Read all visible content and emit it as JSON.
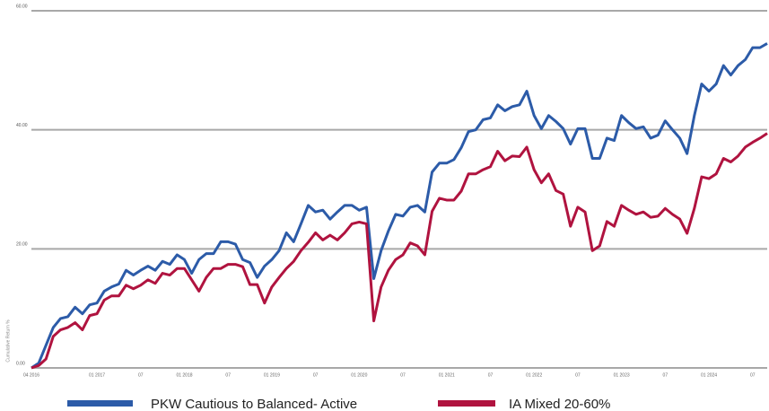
{
  "chart_data": {
    "type": "line",
    "y_label": "Cumulative Return %",
    "categories": [
      "04 2016",
      null,
      null,
      null,
      null,
      null,
      null,
      null,
      null,
      "01 2017",
      null,
      null,
      null,
      null,
      null,
      "07",
      null,
      null,
      null,
      null,
      null,
      "01 2018",
      null,
      null,
      null,
      null,
      null,
      "07",
      null,
      null,
      null,
      null,
      null,
      "01 2019",
      null,
      null,
      null,
      null,
      null,
      "07",
      null,
      null,
      null,
      null,
      null,
      "01 2020",
      null,
      null,
      null,
      null,
      null,
      "07",
      null,
      null,
      null,
      null,
      null,
      "01 2021",
      null,
      null,
      null,
      null,
      null,
      "07",
      null,
      null,
      null,
      null,
      null,
      "01 2022",
      null,
      null,
      null,
      null,
      null,
      "07",
      null,
      null,
      null,
      null,
      null,
      "01 2023",
      null,
      null,
      null,
      null,
      null,
      "07",
      null,
      null,
      null,
      null,
      null,
      "01 2024",
      null,
      null,
      null,
      null,
      null,
      "07",
      null,
      null
    ],
    "series": [
      {
        "name": "PKW Cautious to Balanced- Active",
        "color": "#2c5ba8",
        "values": [
          0,
          0.8,
          3.8,
          6.8,
          8.3,
          8.6,
          10.2,
          9.1,
          10.6,
          10.9,
          12.9,
          13.6,
          14.1,
          16.4,
          15.6,
          16.4,
          17.1,
          16.4,
          17.9,
          17.4,
          19.0,
          18.2,
          15.9,
          18.2,
          19.2,
          19.2,
          21.2,
          21.2,
          20.8,
          18.2,
          17.7,
          15.2,
          17.1,
          18.2,
          19.7,
          22.7,
          21.2,
          24.2,
          27.3,
          26.2,
          26.5,
          25.0,
          26.2,
          27.3,
          27.3,
          26.5,
          27.0,
          15.0,
          19.7,
          23.0,
          25.8,
          25.5,
          27.0,
          27.3,
          26.2,
          32.9,
          34.4,
          34.4,
          35.0,
          37.0,
          39.7,
          40.0,
          41.7,
          42.0,
          44.2,
          43.2,
          43.9,
          44.2,
          46.5,
          42.4,
          40.2,
          42.4,
          41.4,
          40.2,
          37.6,
          40.2,
          40.2,
          35.2,
          35.2,
          38.6,
          38.2,
          42.4,
          41.2,
          40.2,
          40.5,
          38.6,
          39.1,
          41.5,
          40.0,
          38.6,
          36.0,
          42.4,
          47.7,
          46.5,
          47.7,
          50.8,
          49.2,
          50.8,
          51.8,
          53.8,
          53.8,
          54.5
        ]
      },
      {
        "name": "IA Mixed 20-60%",
        "color": "#b0133f",
        "values": [
          0,
          0.4,
          1.5,
          5.3,
          6.4,
          6.8,
          7.6,
          6.4,
          8.8,
          9.1,
          11.4,
          12.1,
          12.1,
          13.9,
          13.3,
          13.9,
          14.8,
          14.2,
          15.9,
          15.6,
          16.7,
          16.7,
          14.8,
          12.9,
          15.2,
          16.7,
          16.7,
          17.4,
          17.4,
          17.0,
          14.0,
          14.0,
          10.9,
          13.6,
          15.2,
          16.7,
          17.9,
          19.7,
          21.1,
          22.7,
          21.5,
          22.3,
          21.5,
          22.7,
          24.2,
          24.5,
          24.2,
          7.9,
          13.6,
          16.4,
          18.2,
          19.0,
          21.0,
          20.5,
          19.0,
          26.3,
          28.5,
          28.2,
          28.2,
          29.7,
          32.6,
          32.6,
          33.3,
          33.8,
          36.4,
          34.8,
          35.6,
          35.5,
          37.1,
          33.3,
          31.1,
          32.6,
          29.8,
          29.2,
          23.8,
          27.0,
          26.2,
          19.7,
          20.5,
          24.6,
          23.8,
          27.3,
          26.5,
          25.8,
          26.2,
          25.3,
          25.5,
          26.8,
          25.8,
          25.0,
          22.6,
          26.8,
          32.1,
          31.8,
          32.6,
          35.2,
          34.6,
          35.6,
          37.1,
          37.9,
          38.6,
          39.4
        ]
      }
    ],
    "ylim": [
      0,
      60
    ],
    "yticks": [
      {
        "value": 0,
        "label": "0.00"
      },
      {
        "value": 20,
        "label": "20.00"
      },
      {
        "value": 40,
        "label": "40.00"
      },
      {
        "value": 60,
        "label": "60.00"
      }
    ],
    "grid": true,
    "legend": "bottom"
  }
}
